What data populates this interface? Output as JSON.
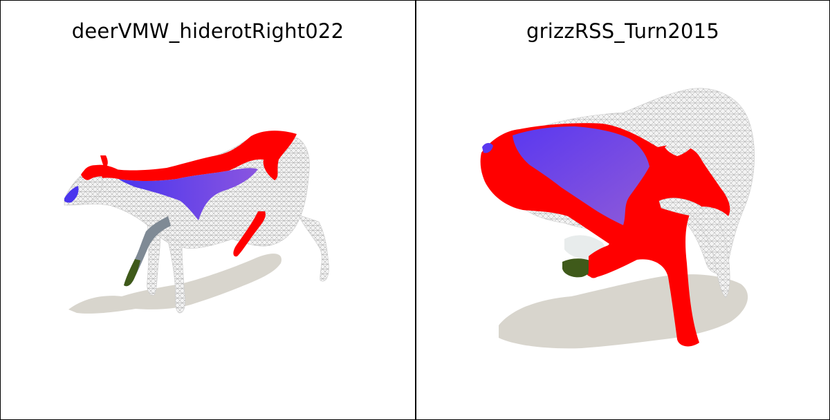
{
  "panels": [
    {
      "title": "deerVMW_hiderotRight022",
      "subject": "deer-mesh"
    },
    {
      "title": "grizzRSS_Turn2015",
      "subject": "bear-mesh"
    }
  ],
  "colors": {
    "red": "#ff0000",
    "blue": "#5a3cf0",
    "shadow": "#d8d5cd",
    "mesh": "#f2f2f2",
    "wire": "#9a9a9a",
    "green": "#3f5a1a",
    "gray": "#7f8a95"
  }
}
